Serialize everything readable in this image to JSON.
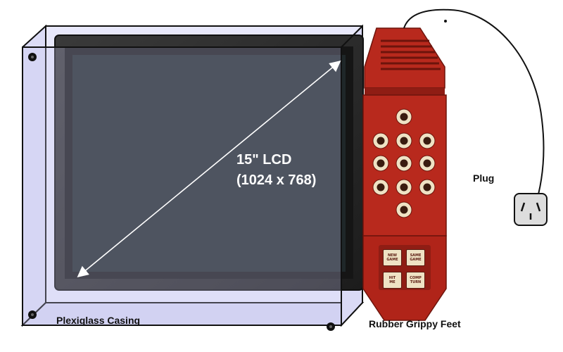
{
  "labels": {
    "lcd_title": "15\" LCD",
    "lcd_resolution": "(1024 x 768)",
    "plug": "Plug",
    "casing": "Plexiglass Casing",
    "feet": "Rubber Grippy Feet"
  },
  "controller_buttons": {
    "new_game": [
      "NEW",
      "GAME"
    ],
    "same_game": [
      "SAME",
      "GAME"
    ],
    "hit_me": [
      "HIT",
      "ME"
    ],
    "comp_turn": [
      "COMP",
      "TURN"
    ]
  },
  "colors": {
    "plexiglass_fill": "#e6e6fb",
    "plexiglass_stroke": "#111111",
    "monitor_bezel": "#2b2b2b",
    "screen": "#20282a",
    "controller_red": "#b8291d",
    "controller_dark_red": "#8f1d14",
    "button_cream": "#efe2c4",
    "hole_dark": "#3a1c10"
  },
  "icons": [
    "power-plug-icon",
    "diagonal-arrow"
  ]
}
